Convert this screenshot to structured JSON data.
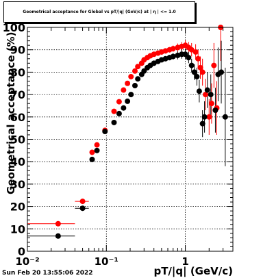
{
  "chart_data": {
    "type": "scatter",
    "title": "Geometrical acceptance for Global vs pT/|q| (GeV/c) at | η | <= 1.0",
    "xlabel": "pT/|q| (GeV/c)",
    "ylabel": "Geometrical acceptance (%)",
    "xscale": "log",
    "xlim": [
      0.01,
      4.0
    ],
    "ylim": [
      0,
      100
    ],
    "x_tick_labels": [
      "10⁻²",
      "10⁻¹",
      "1"
    ],
    "y_tick_labels": [
      "0",
      "10",
      "20",
      "30",
      "40",
      "50",
      "60",
      "70",
      "80",
      "90",
      "100"
    ],
    "grid": true,
    "series": [
      {
        "marker_color": "#ff0000",
        "points": [
          {
            "x": 0.0245,
            "y": 12.3,
            "xerr": [
              0.0145,
              0.0155
            ],
            "yerr": 0.5
          },
          {
            "x": 0.05,
            "y": 22.3,
            "xerr": [
              0.01,
              0.01
            ],
            "yerr": 0.6
          },
          {
            "x": 0.066,
            "y": 44.2,
            "yerr": 0.8
          },
          {
            "x": 0.076,
            "y": 47.5,
            "yerr": 0.8
          },
          {
            "x": 0.096,
            "y": 54.0,
            "yerr": 0.8
          },
          {
            "x": 0.125,
            "y": 62.5,
            "yerr": 0.8
          },
          {
            "x": 0.145,
            "y": 66.8,
            "yerr": 0.8
          },
          {
            "x": 0.165,
            "y": 72.0,
            "yerr": 0.8
          },
          {
            "x": 0.185,
            "y": 75.0,
            "yerr": 0.8
          },
          {
            "x": 0.205,
            "y": 78.0,
            "yerr": 0.8
          },
          {
            "x": 0.23,
            "y": 80.5,
            "yerr": 0.8
          },
          {
            "x": 0.25,
            "y": 82.5,
            "yerr": 0.8
          },
          {
            "x": 0.28,
            "y": 84.0,
            "yerr": 0.8
          },
          {
            "x": 0.3,
            "y": 85.5,
            "yerr": 0.8
          },
          {
            "x": 0.33,
            "y": 86.5,
            "yerr": 0.8
          },
          {
            "x": 0.36,
            "y": 87.3,
            "yerr": 0.8
          },
          {
            "x": 0.4,
            "y": 88.0,
            "yerr": 0.9
          },
          {
            "x": 0.45,
            "y": 88.5,
            "yerr": 0.9
          },
          {
            "x": 0.5,
            "y": 89.0,
            "yerr": 1.0
          },
          {
            "x": 0.56,
            "y": 89.5,
            "yerr": 1.0
          },
          {
            "x": 0.63,
            "y": 90.0,
            "yerr": 1.2
          },
          {
            "x": 0.7,
            "y": 90.5,
            "yerr": 1.4
          },
          {
            "x": 0.8,
            "y": 91.0,
            "yerr": 1.8
          },
          {
            "x": 0.9,
            "y": 91.5,
            "yerr": 2.0
          },
          {
            "x": 1.0,
            "y": 92.0,
            "yerr": 2.3
          },
          {
            "x": 1.1,
            "y": 91.0,
            "yerr": 2.5
          },
          {
            "x": 1.2,
            "y": 90.0,
            "yerr": 3.0
          },
          {
            "x": 1.35,
            "y": 89.0,
            "yerr": 3.5
          },
          {
            "x": 1.45,
            "y": 86.0,
            "yerr": 4.0
          },
          {
            "x": 1.55,
            "y": 82.0,
            "yerr": 5.0
          },
          {
            "x": 1.65,
            "y": 80.0,
            "yerr": 6.0
          },
          {
            "x": 1.8,
            "y": 70.0,
            "yerr": 7.0
          },
          {
            "x": 2.0,
            "y": 60.0,
            "yerr": 8.0
          },
          {
            "x": 2.15,
            "y": 66.0,
            "yerr": 9.0
          },
          {
            "x": 2.3,
            "y": 83.0,
            "yerr": 10.0
          },
          {
            "x": 2.5,
            "y": 64.0,
            "yerr": 12.0
          },
          {
            "x": 2.8,
            "y": 100.0,
            "yerr": 15.0
          }
        ]
      },
      {
        "marker_color": "#000000",
        "points": [
          {
            "x": 0.0245,
            "y": 6.8,
            "xerr": [
              0.0145,
              0.0155
            ],
            "yerr": 0.5
          },
          {
            "x": 0.05,
            "y": 19.2,
            "xerr": [
              0.01,
              0.01
            ],
            "yerr": 0.6
          },
          {
            "x": 0.066,
            "y": 41.0,
            "yerr": 0.8
          },
          {
            "x": 0.076,
            "y": 45.0,
            "yerr": 0.8
          },
          {
            "x": 0.096,
            "y": 53.5,
            "yerr": 0.8
          },
          {
            "x": 0.125,
            "y": 57.5,
            "yerr": 0.8
          },
          {
            "x": 0.145,
            "y": 61.5,
            "yerr": 0.8
          },
          {
            "x": 0.165,
            "y": 64.0,
            "yerr": 0.8
          },
          {
            "x": 0.185,
            "y": 67.0,
            "yerr": 0.8
          },
          {
            "x": 0.205,
            "y": 70.0,
            "yerr": 0.8
          },
          {
            "x": 0.23,
            "y": 74.0,
            "yerr": 0.8
          },
          {
            "x": 0.25,
            "y": 77.0,
            "yerr": 0.8
          },
          {
            "x": 0.28,
            "y": 79.0,
            "yerr": 0.8
          },
          {
            "x": 0.3,
            "y": 80.5,
            "yerr": 0.8
          },
          {
            "x": 0.33,
            "y": 82.0,
            "yerr": 0.8
          },
          {
            "x": 0.36,
            "y": 83.0,
            "yerr": 0.8
          },
          {
            "x": 0.4,
            "y": 84.0,
            "yerr": 0.9
          },
          {
            "x": 0.45,
            "y": 84.8,
            "yerr": 0.9
          },
          {
            "x": 0.5,
            "y": 85.5,
            "yerr": 1.0
          },
          {
            "x": 0.56,
            "y": 86.0,
            "yerr": 1.0
          },
          {
            "x": 0.63,
            "y": 86.5,
            "yerr": 1.2
          },
          {
            "x": 0.7,
            "y": 87.0,
            "yerr": 1.4
          },
          {
            "x": 0.8,
            "y": 87.5,
            "yerr": 1.8
          },
          {
            "x": 0.9,
            "y": 88.0,
            "yerr": 2.0
          },
          {
            "x": 1.0,
            "y": 88.0,
            "yerr": 2.3
          },
          {
            "x": 1.1,
            "y": 86.5,
            "yerr": 2.5
          },
          {
            "x": 1.2,
            "y": 83.0,
            "yerr": 3.0
          },
          {
            "x": 1.3,
            "y": 80.0,
            "yerr": 3.5
          },
          {
            "x": 1.4,
            "y": 78.0,
            "yerr": 4.0
          },
          {
            "x": 1.5,
            "y": 71.5,
            "yerr": 5.0
          },
          {
            "x": 1.65,
            "y": 57.0,
            "yerr": 6.0
          },
          {
            "x": 1.75,
            "y": 60.0,
            "yerr": 7.0
          },
          {
            "x": 1.9,
            "y": 72.0,
            "yerr": 8.0
          },
          {
            "x": 2.1,
            "y": 70.0,
            "yerr": 9.0
          },
          {
            "x": 2.4,
            "y": 63.0,
            "yerr": 10.0
          },
          {
            "x": 2.6,
            "y": 79.0,
            "yerr": 12.0
          },
          {
            "x": 2.85,
            "y": 80.0,
            "yerr": 14.0
          },
          {
            "x": 3.2,
            "y": 60.0,
            "yerr": 22.0
          }
        ]
      }
    ]
  },
  "footer": {
    "timestamp": "Sun Feb 20 13:55:06 2022"
  }
}
